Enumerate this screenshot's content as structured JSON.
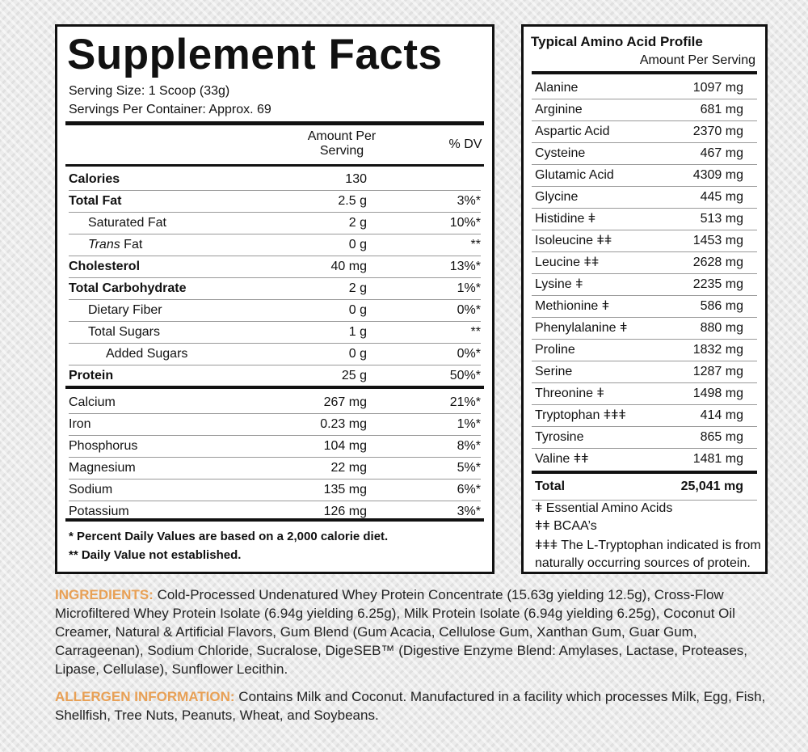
{
  "supplement_facts": {
    "title": "Supplement Facts",
    "serving_size": "Serving Size: 1 Scoop (33g)",
    "servings_per_container": "Servings Per Container: Approx. 69",
    "header": {
      "amount": "Amount Per Serving",
      "dv": "% DV"
    },
    "nutrients": [
      {
        "label": "Calories",
        "amount": "130"
      },
      {
        "label": "Total Fat",
        "amount": "2.5 g",
        "dv": "3%*"
      },
      {
        "label": "Saturated Fat",
        "amount": "2 g",
        "dv": "10%*"
      },
      {
        "label_italic": "Trans",
        "label": "Fat",
        "amount": "0 g",
        "dv": "**"
      },
      {
        "label": "Cholesterol",
        "amount": "40 mg",
        "dv": "13%*"
      },
      {
        "label": "Total Carbohydrate",
        "amount": "2 g",
        "dv": "1%*"
      },
      {
        "label": "Dietary Fiber",
        "amount": "0 g",
        "dv": "0%*"
      },
      {
        "label": "Total Sugars",
        "amount": "1 g",
        "dv": "**"
      },
      {
        "label": "Added Sugars",
        "amount": "0 g",
        "dv": "0%*"
      },
      {
        "label": "Protein",
        "amount": "25 g",
        "dv": "50%*"
      }
    ],
    "minerals": [
      {
        "label": "Calcium",
        "amount": "267 mg",
        "dv": "21%*"
      },
      {
        "label": "Iron",
        "amount": "0.23 mg",
        "dv": "1%*"
      },
      {
        "label": "Phosphorus",
        "amount": "104 mg",
        "dv": "8%*"
      },
      {
        "label": "Magnesium",
        "amount": "22 mg",
        "dv": "5%*"
      },
      {
        "label": "Sodium",
        "amount": "135 mg",
        "dv": "6%*"
      },
      {
        "label": "Potassium",
        "amount": "126 mg",
        "dv": "3%*"
      }
    ],
    "footnotes": [
      "* Percent Daily Values are based on a 2,000 calorie diet.",
      "** Daily Value not established."
    ]
  },
  "amino_profile": {
    "title": "Typical Amino Acid Profile",
    "subtitle": "Amount Per Serving",
    "rows": [
      {
        "name": "Alanine",
        "amount": "1097 mg"
      },
      {
        "name": "Arginine",
        "amount": "681 mg"
      },
      {
        "name": "Aspartic Acid",
        "amount": "2370 mg"
      },
      {
        "name": "Cysteine",
        "amount": "467 mg"
      },
      {
        "name": "Glutamic Acid",
        "amount": "4309 mg"
      },
      {
        "name": "Glycine",
        "amount": "445 mg"
      },
      {
        "name": "Histidine ǂ",
        "amount": "513 mg"
      },
      {
        "name": "Isoleucine ǂǂ",
        "amount": "1453 mg"
      },
      {
        "name": "Leucine ǂǂ",
        "amount": "2628 mg"
      },
      {
        "name": "Lysine ǂ",
        "amount": "2235 mg"
      },
      {
        "name": "Methionine ǂ",
        "amount": "586 mg"
      },
      {
        "name": "Phenylalanine ǂ",
        "amount": "880 mg"
      },
      {
        "name": "Proline",
        "amount": "1832 mg"
      },
      {
        "name": "Serine",
        "amount": "1287 mg"
      },
      {
        "name": "Threonine ǂ",
        "amount": "1498 mg"
      },
      {
        "name": "Tryptophan ǂǂǂ",
        "amount": "414 mg"
      },
      {
        "name": "Tyrosine",
        "amount": "865 mg"
      },
      {
        "name": "Valine ǂǂ",
        "amount": "1481 mg"
      }
    ],
    "total": {
      "label": "Total",
      "amount": "25,041 mg"
    },
    "notes": [
      "ǂ Essential Amino Acids",
      "ǂǂ BCAA’s",
      "ǂǂǂ The L-Tryptophan indicated is from naturally occurring sources of protein."
    ]
  },
  "ingredients": {
    "label": "INGREDIENTS:",
    "text": "Cold-Processed Undenatured Whey Protein Concentrate (15.63g yielding 12.5g), Cross-Flow Microfiltered Whey Protein Isolate (6.94g yielding 6.25g), Milk Protein Isolate (6.94g yielding 6.25g), Coconut Oil Creamer, Natural & Artificial Flavors, Gum Blend (Gum Acacia, Cellulose Gum, Xanthan Gum, Guar Gum, Carrageenan), Sodium Chloride, Sucralose, DigeSEB™ (Digestive Enzyme Blend: Amylases, Lactase, Proteases, Lipase, Cellulase), Sunflower Lecithin."
  },
  "allergen": {
    "label": "ALLERGEN INFORMATION:",
    "text": "Contains Milk and Coconut. Manufactured in a facility which processes Milk, Egg, Fish, Shellfish, Tree Nuts, Peanuts, Wheat, and Soybeans."
  }
}
